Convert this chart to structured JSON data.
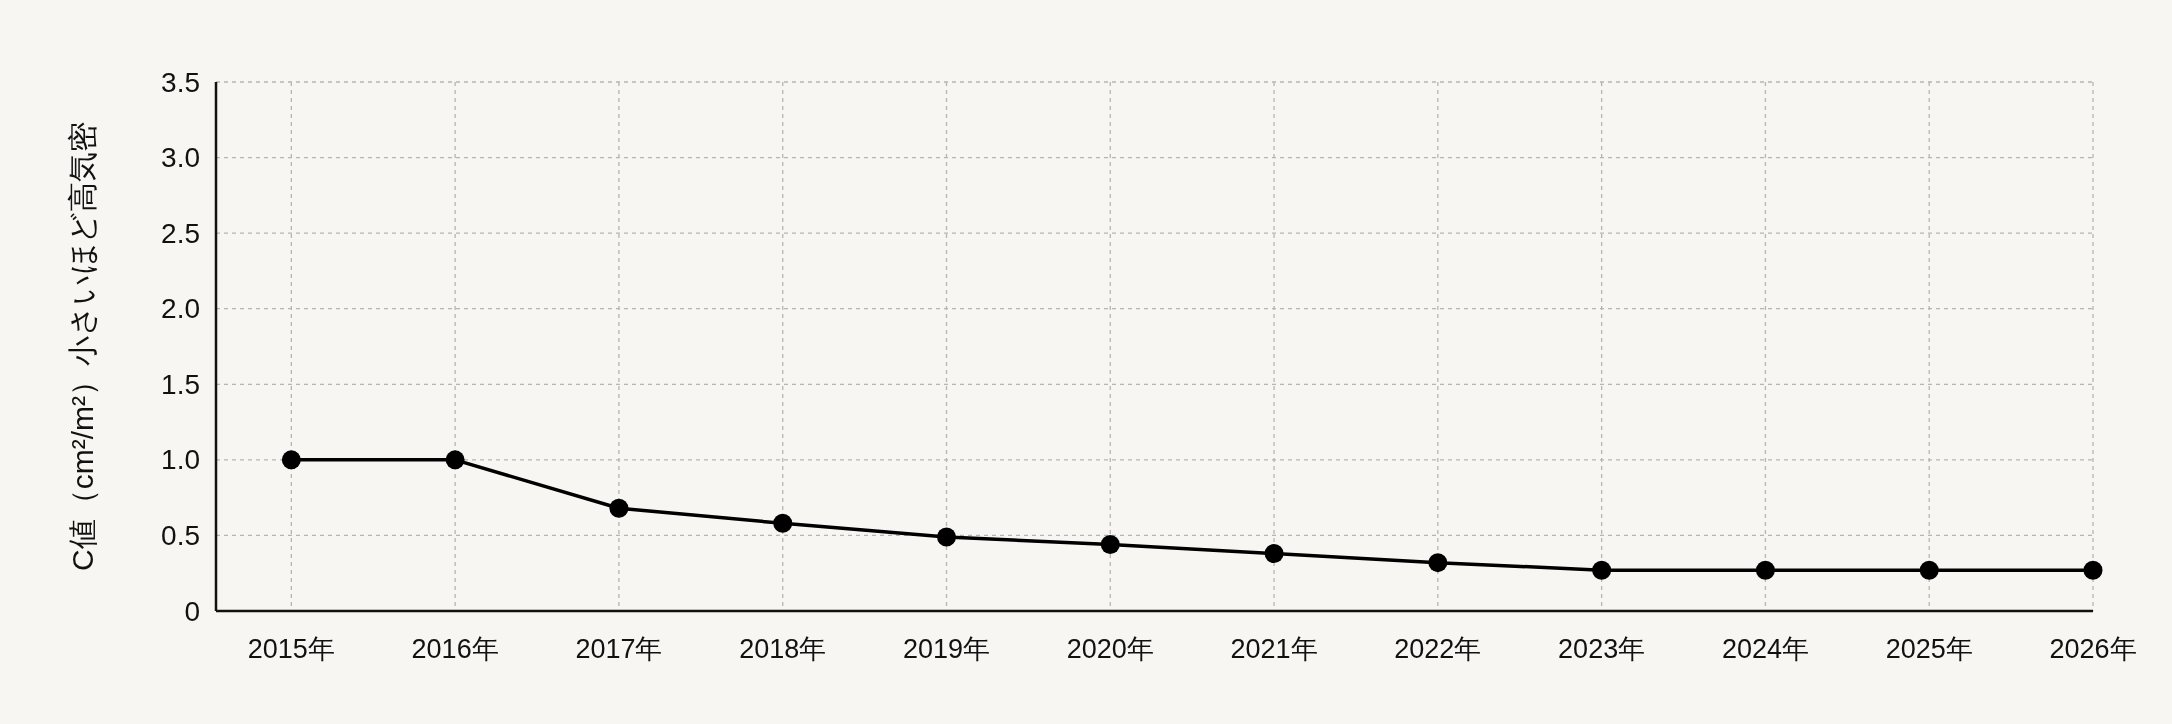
{
  "chart_data": {
    "type": "line",
    "ylabel": "C値（cm²/m²）小さいほど高気密",
    "categories": [
      "2015年",
      "2016年",
      "2017年",
      "2018年",
      "2019年",
      "2020年",
      "2021年",
      "2022年",
      "2023年",
      "2024年",
      "2025年",
      "2026年"
    ],
    "series": [
      {
        "color": "#000000",
        "values": [
          1.0,
          1.0,
          0.68,
          0.58,
          0.49,
          0.44,
          0.38,
          0.32,
          0.27,
          0.27,
          0.27,
          0.27
        ]
      }
    ],
    "ylim": [
      0,
      3.5
    ],
    "yticks": [
      0,
      0.5,
      {
        "value": 1,
        "label": "1.0"
      },
      1.5,
      {
        "value": 2,
        "label": "2.0"
      },
      2.5,
      {
        "value": 3,
        "label": "3.0"
      },
      3.5
    ],
    "grid": true,
    "marker": "circle",
    "line_style": "solid"
  }
}
